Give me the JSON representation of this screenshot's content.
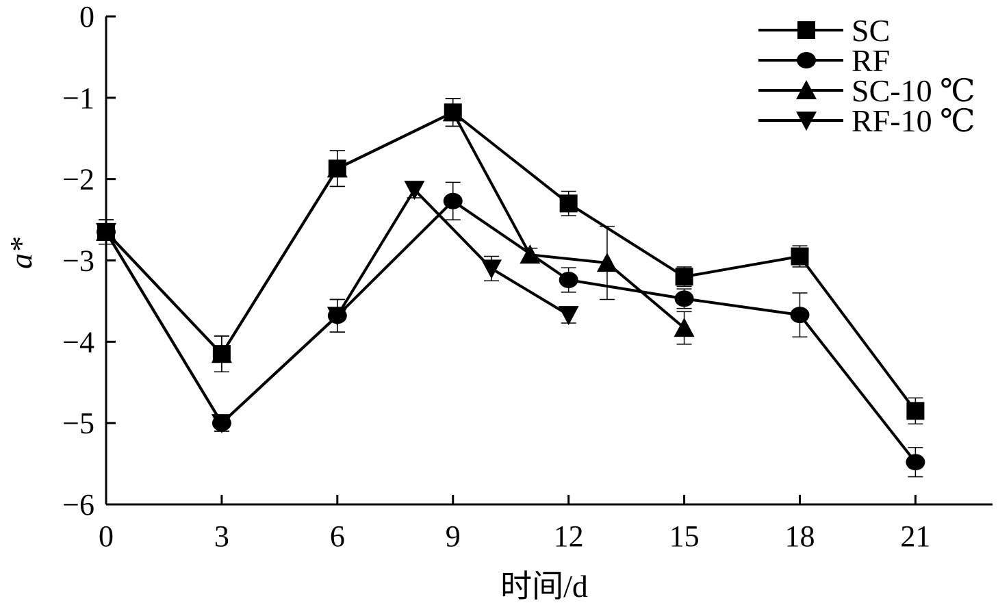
{
  "chart_data": {
    "type": "line",
    "xlabel": "时间/d",
    "ylabel": "a*",
    "xlim": [
      0,
      23
    ],
    "ylim": [
      -6,
      0
    ],
    "x_ticks": [
      0,
      3,
      6,
      9,
      12,
      15,
      18,
      21
    ],
    "y_ticks": [
      0,
      -1,
      -2,
      -3,
      -4,
      -5,
      -6
    ],
    "y_tick_labels": [
      "0",
      "−1",
      "−2",
      "−3",
      "−4",
      "−5",
      "−6"
    ],
    "legend_position": "top-right",
    "series": [
      {
        "name": "SC",
        "marker": "square",
        "x": [
          0,
          3,
          6,
          9,
          12,
          15,
          18,
          21
        ],
        "y": [
          -2.65,
          -4.15,
          -1.87,
          -1.18,
          -2.3,
          -3.2,
          -2.95,
          -4.85
        ],
        "err": [
          0.15,
          0.22,
          0.22,
          0.17,
          0.15,
          0.12,
          0.13,
          0.16
        ]
      },
      {
        "name": "RF",
        "marker": "circle",
        "x": [
          0,
          3,
          6,
          9,
          12,
          15,
          18,
          21
        ],
        "y": [
          -2.65,
          -5.0,
          -3.68,
          -2.27,
          -3.24,
          -3.47,
          -3.67,
          -5.48
        ],
        "err": [
          0.15,
          0.1,
          0.2,
          0.23,
          0.15,
          0.12,
          0.27,
          0.18
        ]
      },
      {
        "name": "SC-10 ℃",
        "marker": "triangle-up",
        "x": [
          0,
          3,
          6,
          9,
          11,
          13,
          15
        ],
        "y": [
          -2.65,
          -4.15,
          -1.87,
          -1.18,
          -2.93,
          -3.03,
          -3.83
        ],
        "err": [
          0.15,
          0.22,
          0.22,
          0.17,
          0.08,
          0.45,
          0.2
        ]
      },
      {
        "name": "RF-10 ℃",
        "marker": "triangle-down",
        "x": [
          0,
          3,
          6,
          8,
          10,
          12
        ],
        "y": [
          -2.65,
          -5.0,
          -3.68,
          -2.13,
          -3.1,
          -3.67
        ],
        "err": [
          0.15,
          0.1,
          0.2,
          0.1,
          0.15,
          0.1
        ]
      }
    ]
  }
}
